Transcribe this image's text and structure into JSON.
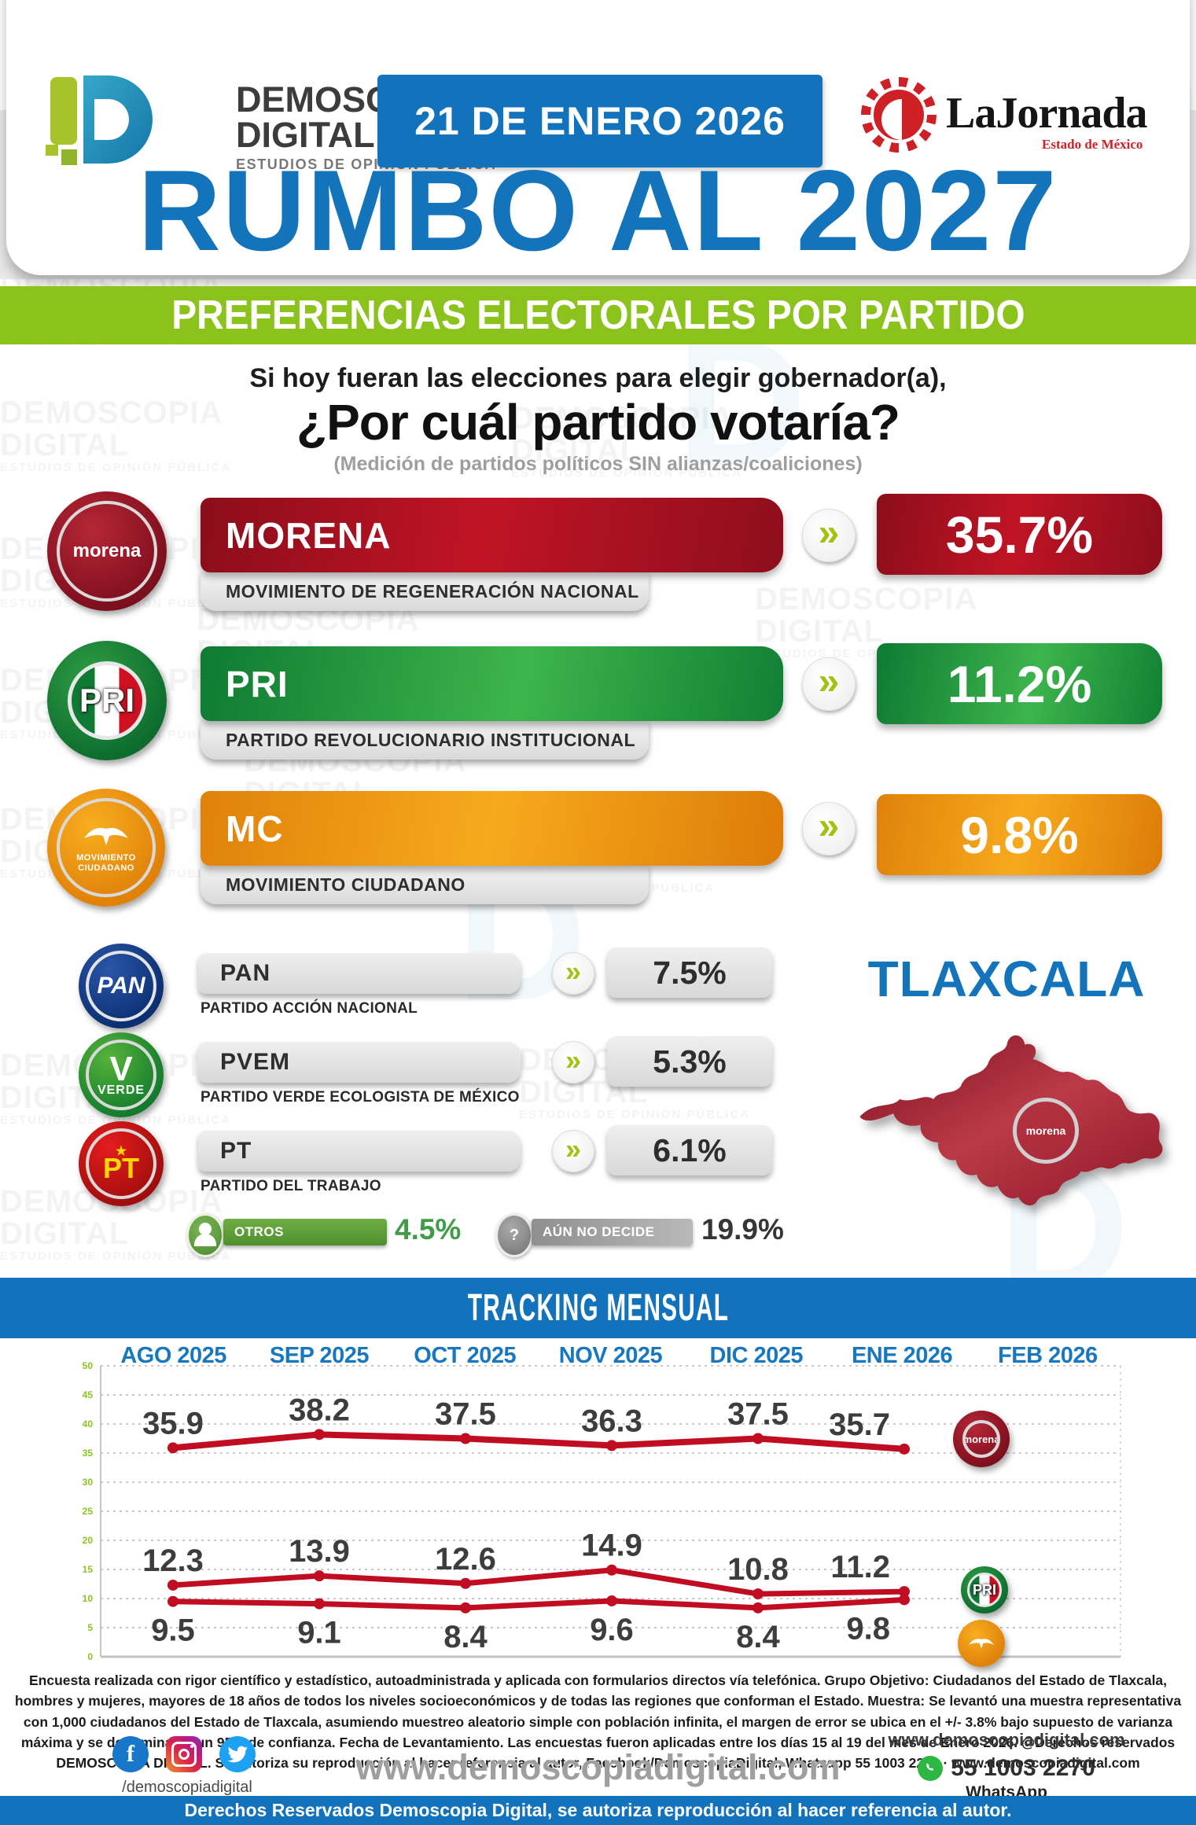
{
  "header": {
    "logo": {
      "mark": "D",
      "name1": "DEMOSCOPIA",
      "name2": "DIGITAL",
      "tagline": "ESTUDIOS DE OPINIÓN PÚBLICA"
    },
    "date_banner": "21 DE ENERO 2026",
    "partner": {
      "name": "LaJornada",
      "region": "Estado de México"
    }
  },
  "title": "RUMBO AL 2027",
  "section_banner": "PREFERENCIAS ELECTORALES POR PARTIDO",
  "question": {
    "line1": "Si hoy fueran las elecciones para elegir gobernador(a),",
    "line2": "¿Por cuál partido votaría?",
    "note": "(Medición de partidos políticos SIN alianzas/coaliciones)"
  },
  "badges": {
    "morena": "morena",
    "pri": "PRI",
    "pan": "PAN",
    "pvem_v": "V",
    "pvem": "VERDE",
    "pt_star": "★",
    "pt": "PT",
    "mc_line1": "MOVIMIENTO",
    "mc_line2": "CIUDADANO",
    "chevron": "»",
    "question_mark": "?"
  },
  "state": {
    "name": "TLAXCALA",
    "map_badge": "morena"
  },
  "colors": {
    "brand_blue": "#1273bc",
    "banner_green": "#8bc31c",
    "morena_red": "#c01425",
    "pri_green": "#1f9e3e",
    "mc_orange": "#f1960f",
    "chart_line_red": "#c10d22"
  },
  "chart_data": [
    {
      "type": "bar",
      "title": "PREFERENCIAS ELECTORALES POR PARTIDO",
      "categories": [
        "MORENA",
        "PRI",
        "MC",
        "PAN",
        "PVEM",
        "PT",
        "OTROS",
        "AÚN NO DECIDE"
      ],
      "values": [
        35.7,
        11.2,
        9.8,
        7.5,
        5.3,
        6.1,
        4.5,
        19.9
      ],
      "display_values": [
        "35.7%",
        "11.2%",
        "9.8%",
        "7.5%",
        "5.3%",
        "6.1%",
        "4.5%",
        "19.9%"
      ],
      "full_names": [
        "MOVIMIENTO DE REGENERACIÓN NACIONAL",
        "PARTIDO REVOLUCIONARIO INSTITUCIONAL",
        "MOVIMIENTO CIUDADANO",
        "PARTIDO ACCIÓN NACIONAL",
        "PARTIDO VERDE ECOLOGISTA DE MÉXICO",
        "PARTIDO DEL TRABAJO",
        "",
        ""
      ]
    },
    {
      "type": "line",
      "title": "TRACKING MENSUAL",
      "categories": [
        "AGO 2025",
        "SEP 2025",
        "OCT 2025",
        "NOV 2025",
        "DIC 2025",
        "ENE 2026",
        "FEB 2026"
      ],
      "series": [
        {
          "name": "MORENA",
          "values": [
            35.9,
            38.2,
            37.5,
            36.3,
            37.5,
            35.7
          ]
        },
        {
          "name": "PRI",
          "values": [
            12.3,
            13.9,
            12.6,
            14.9,
            10.8,
            11.2
          ]
        },
        {
          "name": "MC",
          "values": [
            9.5,
            9.1,
            8.4,
            9.6,
            8.4,
            9.8
          ]
        }
      ],
      "ylim": [
        0,
        50
      ],
      "ytick_step": 5,
      "grid": true,
      "legend_position": "line-end-badges",
      "line_color": "#c10d22",
      "label_color": "#3d3d3d",
      "axis_label_color": "#8cc31e"
    }
  ],
  "methodology": "Encuesta realizada con rigor científico y estadístico, autoadministrada y aplicada con formularios directos vía telefónica. Grupo Objetivo: Ciudadanos del Estado de Tlaxcala, hombres y mujeres, mayores de 18 años de todos los niveles socioeconómicos y de todas las regiones que conforman el Estado. Muestra: Se levantó una muestra representativa con 1,000 ciudadanos del Estado de Tlaxcala, asumiendo muestreo aleatorio simple con población infinita, el margen de error se ubica en el +/- 3.8% bajo supuesto de varianza máxima y se determina en un 95% de confianza. Fecha de Levantamiento. Las encuestas fueron aplicadas entre los días 15 al 19 del mes de Enero 2026. @Derechos reservados DEMOSCOPIA DIGITAL. Se autoriza su reproducción al hacer referencia al autor, Facebook/DemoscopiaDigital, Whatsapp 55 1003 2270 · www.demoscopiadigital.com",
  "footer": {
    "social_handle": "/demoscopiadigital",
    "website_big": "www.demoscopiadigital.com",
    "website": "www.demoscopiadigital.com",
    "phone": "55 1003 2270",
    "phone_label": "WhatsApp"
  },
  "copyright": "Derechos Reservados Demoscopia Digital, se autoriza reproducción al hacer referencia al autor.",
  "watermark": {
    "line1": "DEMOSCOPIA",
    "line2": "DIGITAL",
    "line3": "ESTUDIOS DE OPINIÓN PÚBLICA"
  }
}
